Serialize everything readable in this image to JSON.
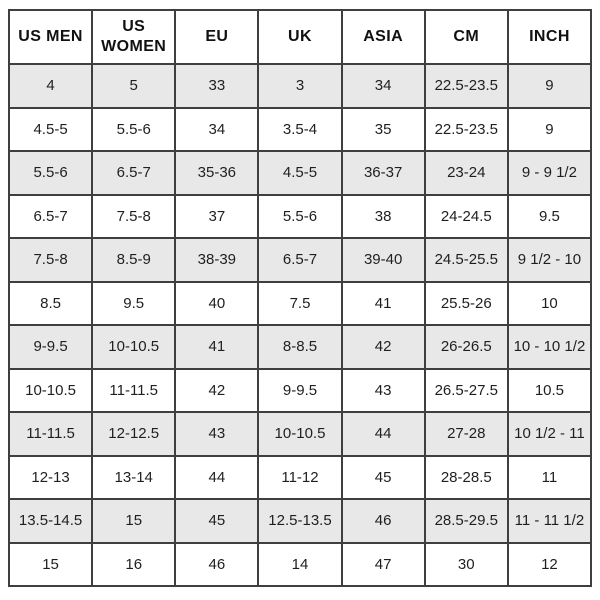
{
  "chart_data": {
    "type": "table",
    "columns": [
      "US MEN",
      "US WOMEN",
      "EU",
      "UK",
      "ASIA",
      "CM",
      "INCH"
    ],
    "rows": [
      [
        "4",
        "5",
        "33",
        "3",
        "34",
        "22.5-23.5",
        "9"
      ],
      [
        "4.5-5",
        "5.5-6",
        "34",
        "3.5-4",
        "35",
        "22.5-23.5",
        "9"
      ],
      [
        "5.5-6",
        "6.5-7",
        "35-36",
        "4.5-5",
        "36-37",
        "23-24",
        "9 - 9 1/2"
      ],
      [
        "6.5-7",
        "7.5-8",
        "37",
        "5.5-6",
        "38",
        "24-24.5",
        "9.5"
      ],
      [
        "7.5-8",
        "8.5-9",
        "38-39",
        "6.5-7",
        "39-40",
        "24.5-25.5",
        "9 1/2 - 10"
      ],
      [
        "8.5",
        "9.5",
        "40",
        "7.5",
        "41",
        "25.5-26",
        "10"
      ],
      [
        "9-9.5",
        "10-10.5",
        "41",
        "8-8.5",
        "42",
        "26-26.5",
        "10 - 10 1/2"
      ],
      [
        "10-10.5",
        "11-11.5",
        "42",
        "9-9.5",
        "43",
        "26.5-27.5",
        "10.5"
      ],
      [
        "11-11.5",
        "12-12.5",
        "43",
        "10-10.5",
        "44",
        "27-28",
        "10 1/2 - 11"
      ],
      [
        "12-13",
        "13-14",
        "44",
        "11-12",
        "45",
        "28-28.5",
        "11"
      ],
      [
        "13.5-14.5",
        "15",
        "45",
        "12.5-13.5",
        "46",
        "28.5-29.5",
        "11 - 11 1/2"
      ],
      [
        "15",
        "16",
        "46",
        "14",
        "47",
        "30",
        "12"
      ]
    ],
    "layout": {
      "alternating_rows": "odd rows shaded",
      "alt_row_background": "#e8e8e8",
      "border_color": "#3f3f3f",
      "header_background": "#ffffff",
      "text_color": "#1f1f1f",
      "grid": true
    }
  }
}
